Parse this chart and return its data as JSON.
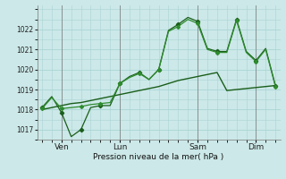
{
  "bg_color": "#cce8e8",
  "grid_color": "#aad4d4",
  "line_color_dark": "#1a5e1a",
  "line_color_mid": "#2e8b2e",
  "ylabel": "Pression niveau de la mer( hPa )",
  "ylim": [
    1016.5,
    1023.2
  ],
  "yticks": [
    1017,
    1018,
    1019,
    1020,
    1021,
    1022
  ],
  "ven_x": 2,
  "lun_x": 8,
  "sam_x": 16,
  "dim_x": 22,
  "smooth_x": [
    0,
    1,
    2,
    3,
    4,
    5,
    6,
    7,
    8,
    9,
    10,
    11,
    12,
    13,
    14,
    15,
    16,
    17,
    18,
    19,
    20,
    21,
    22,
    23,
    24
  ],
  "smooth_y": [
    1018.0,
    1018.1,
    1018.2,
    1018.3,
    1018.35,
    1018.45,
    1018.55,
    1018.65,
    1018.75,
    1018.85,
    1018.95,
    1019.05,
    1019.15,
    1019.3,
    1019.45,
    1019.55,
    1019.65,
    1019.75,
    1019.85,
    1018.95,
    1019.0,
    1019.05,
    1019.1,
    1019.15,
    1019.2
  ],
  "jagged1_x": [
    0,
    1,
    2,
    3,
    4,
    5,
    6,
    7,
    8,
    9,
    10,
    11,
    12,
    13,
    14,
    15,
    16,
    17,
    18,
    19,
    20,
    21,
    22,
    23,
    24
  ],
  "jagged1_y": [
    1018.1,
    1018.65,
    1017.85,
    1016.65,
    1017.0,
    1018.1,
    1018.2,
    1018.2,
    1019.3,
    1019.65,
    1019.85,
    1019.5,
    1020.0,
    1021.95,
    1022.25,
    1022.6,
    1022.4,
    1021.05,
    1020.9,
    1020.9,
    1022.5,
    1020.9,
    1020.45,
    1021.05,
    1019.2
  ],
  "jagged2_x": [
    0,
    1,
    2,
    3,
    4,
    5,
    6,
    7,
    8,
    9,
    10,
    11,
    12,
    13,
    14,
    15,
    16,
    17,
    18,
    19,
    20,
    21,
    22,
    23,
    24
  ],
  "jagged2_y": [
    1018.05,
    1018.6,
    1018.05,
    1018.1,
    1018.15,
    1018.25,
    1018.3,
    1018.35,
    1019.3,
    1019.6,
    1019.8,
    1019.5,
    1020.0,
    1021.9,
    1022.15,
    1022.5,
    1022.3,
    1021.0,
    1020.85,
    1020.85,
    1022.45,
    1020.85,
    1020.4,
    1021.0,
    1019.15
  ],
  "xlim": [
    -0.5,
    24.5
  ]
}
